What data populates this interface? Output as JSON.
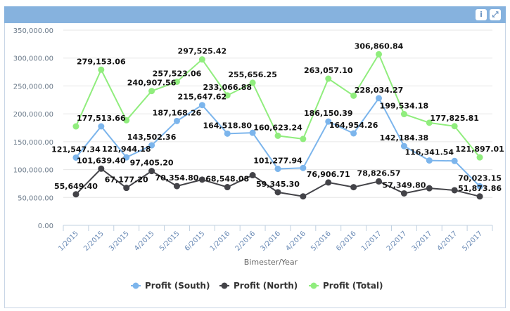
{
  "header": {
    "info_icon": "info-icon",
    "expand_icon": "expand-icon"
  },
  "chart_data": {
    "type": "line",
    "title": "",
    "xlabel": "Bimester/Year",
    "ylabel": "",
    "ylim": [
      0,
      350000
    ],
    "yticks": [
      "0.00",
      "50,000.00",
      "100,000.00",
      "150,000.00",
      "200,000.00",
      "250,000.00",
      "300,000.00",
      "350,000.00"
    ],
    "grid": true,
    "legend": "bottom",
    "categories": [
      "1/2015",
      "2/2015",
      "3/2015",
      "4/2015",
      "5/2015",
      "6/2015",
      "1/2016",
      "2/2016",
      "3/2016",
      "4/2016",
      "5/2016",
      "6/2016",
      "1/2017",
      "2/2017",
      "3/2017",
      "4/2017",
      "5/2017"
    ],
    "series": [
      {
        "name": "Profit (South)",
        "color": "#7cb5ec",
        "values": [
          121547.34,
          177513.66,
          121944.18,
          143502.36,
          187168.26,
          215647.62,
          164518.8,
          166000,
          101277.94,
          103000,
          186150.39,
          164954.26,
          228034.27,
          142184.38,
          116341.54,
          115500,
          70023.15
        ],
        "labels": [
          "121,547.34",
          "177,513.66",
          "121,944.18",
          "143,502.36",
          "187,168.26",
          "215,647.62",
          "164,518.80",
          null,
          "101,277.94",
          null,
          "186,150.39",
          "164,954.26",
          "228,034.27",
          "142,184.38",
          "116,341.54",
          null,
          "70,023.15"
        ]
      },
      {
        "name": "Profit (North)",
        "color": "#434348",
        "values": [
          55649.4,
          101639.4,
          67177.2,
          97405.2,
          70354.8,
          82000,
          68548.08,
          90000,
          59345.3,
          52000,
          76906.71,
          68500,
          78826.57,
          57349.8,
          66500,
          63000,
          51873.86
        ],
        "labels": [
          "55,649.40",
          "101,639.40",
          "67,177.20",
          "97,405.20",
          "70,354.80",
          null,
          "68,548.08",
          null,
          "59,345.30",
          null,
          "76,906.71",
          null,
          "78,826.57",
          "57,349.80",
          null,
          null,
          "51,873.86"
        ]
      },
      {
        "name": "Profit (Total)",
        "color": "#90ed7d",
        "values": [
          177500,
          279153.06,
          188500,
          240907.56,
          257523.06,
          297525.42,
          233066.88,
          255656.25,
          160623.24,
          155000,
          263057.1,
          232500,
          306860.84,
          199534.18,
          184000,
          177825.81,
          121897.01
        ],
        "labels": [
          null,
          "279,153.06",
          null,
          "240,907.56",
          "257,523.06",
          "297,525.42",
          "233,066.88",
          "255,656.25",
          "160,623.24",
          null,
          "263,057.10",
          null,
          "306,860.84",
          "199,534.18",
          null,
          "177,825.81",
          "121,897.01"
        ]
      }
    ]
  }
}
